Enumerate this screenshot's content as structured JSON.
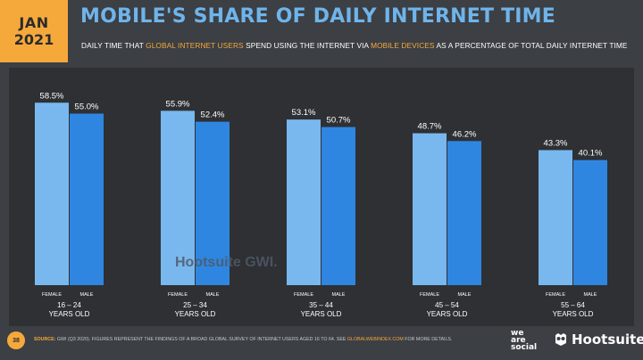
{
  "header": {
    "month": "JAN",
    "year": "2021",
    "title": "MOBILE'S SHARE OF DAILY INTERNET TIME",
    "subtitle_parts": {
      "p1": "DAILY TIME THAT ",
      "h1": "GLOBAL INTERNET USERS",
      "p2": " SPEND USING THE INTERNET VIA ",
      "h2": "MOBILE DEVICES",
      "p3": " AS A PERCENTAGE OF TOTAL DAILY INTERNET TIME"
    }
  },
  "colors": {
    "accent": "#f6a93b",
    "title": "#6fb4ea",
    "female_bar": "#79b8ee",
    "male_bar": "#2f86e0"
  },
  "watermark": {
    "text": "Hootsuite GWI."
  },
  "footer": {
    "page": "38",
    "source_label": "SOURCE:",
    "source_text": " GWI (Q3 2020). FIGURES REPRESENT THE FINDINGS OF A BROAD GLOBAL SURVEY OF INTERNET USERS AGED 16 TO 64. SEE ",
    "source_site": "GLOBALWEBINDEX.COM",
    "source_end": " FOR MORE DETAILS.",
    "brand1": "we are social",
    "brand2": "Hootsuite"
  },
  "chart_data": {
    "type": "bar",
    "categories": [
      "16 – 24",
      "25 – 34",
      "35 – 44",
      "45 – 54",
      "55 – 64"
    ],
    "category_sublabel": "YEARS OLD",
    "bar_labels": [
      "FEMALE",
      "MALE"
    ],
    "series": [
      {
        "name": "FEMALE",
        "values": [
          58.5,
          55.9,
          53.1,
          48.7,
          43.3
        ]
      },
      {
        "name": "MALE",
        "values": [
          55.0,
          52.4,
          50.7,
          46.2,
          40.1
        ]
      }
    ],
    "value_labels": {
      "FEMALE": [
        "58.5%",
        "55.9%",
        "53.1%",
        "48.7%",
        "43.3%"
      ],
      "MALE": [
        "55.0%",
        "52.4%",
        "50.7%",
        "46.2%",
        "40.1%"
      ]
    },
    "ylim": [
      0,
      100
    ],
    "grid": false
  }
}
